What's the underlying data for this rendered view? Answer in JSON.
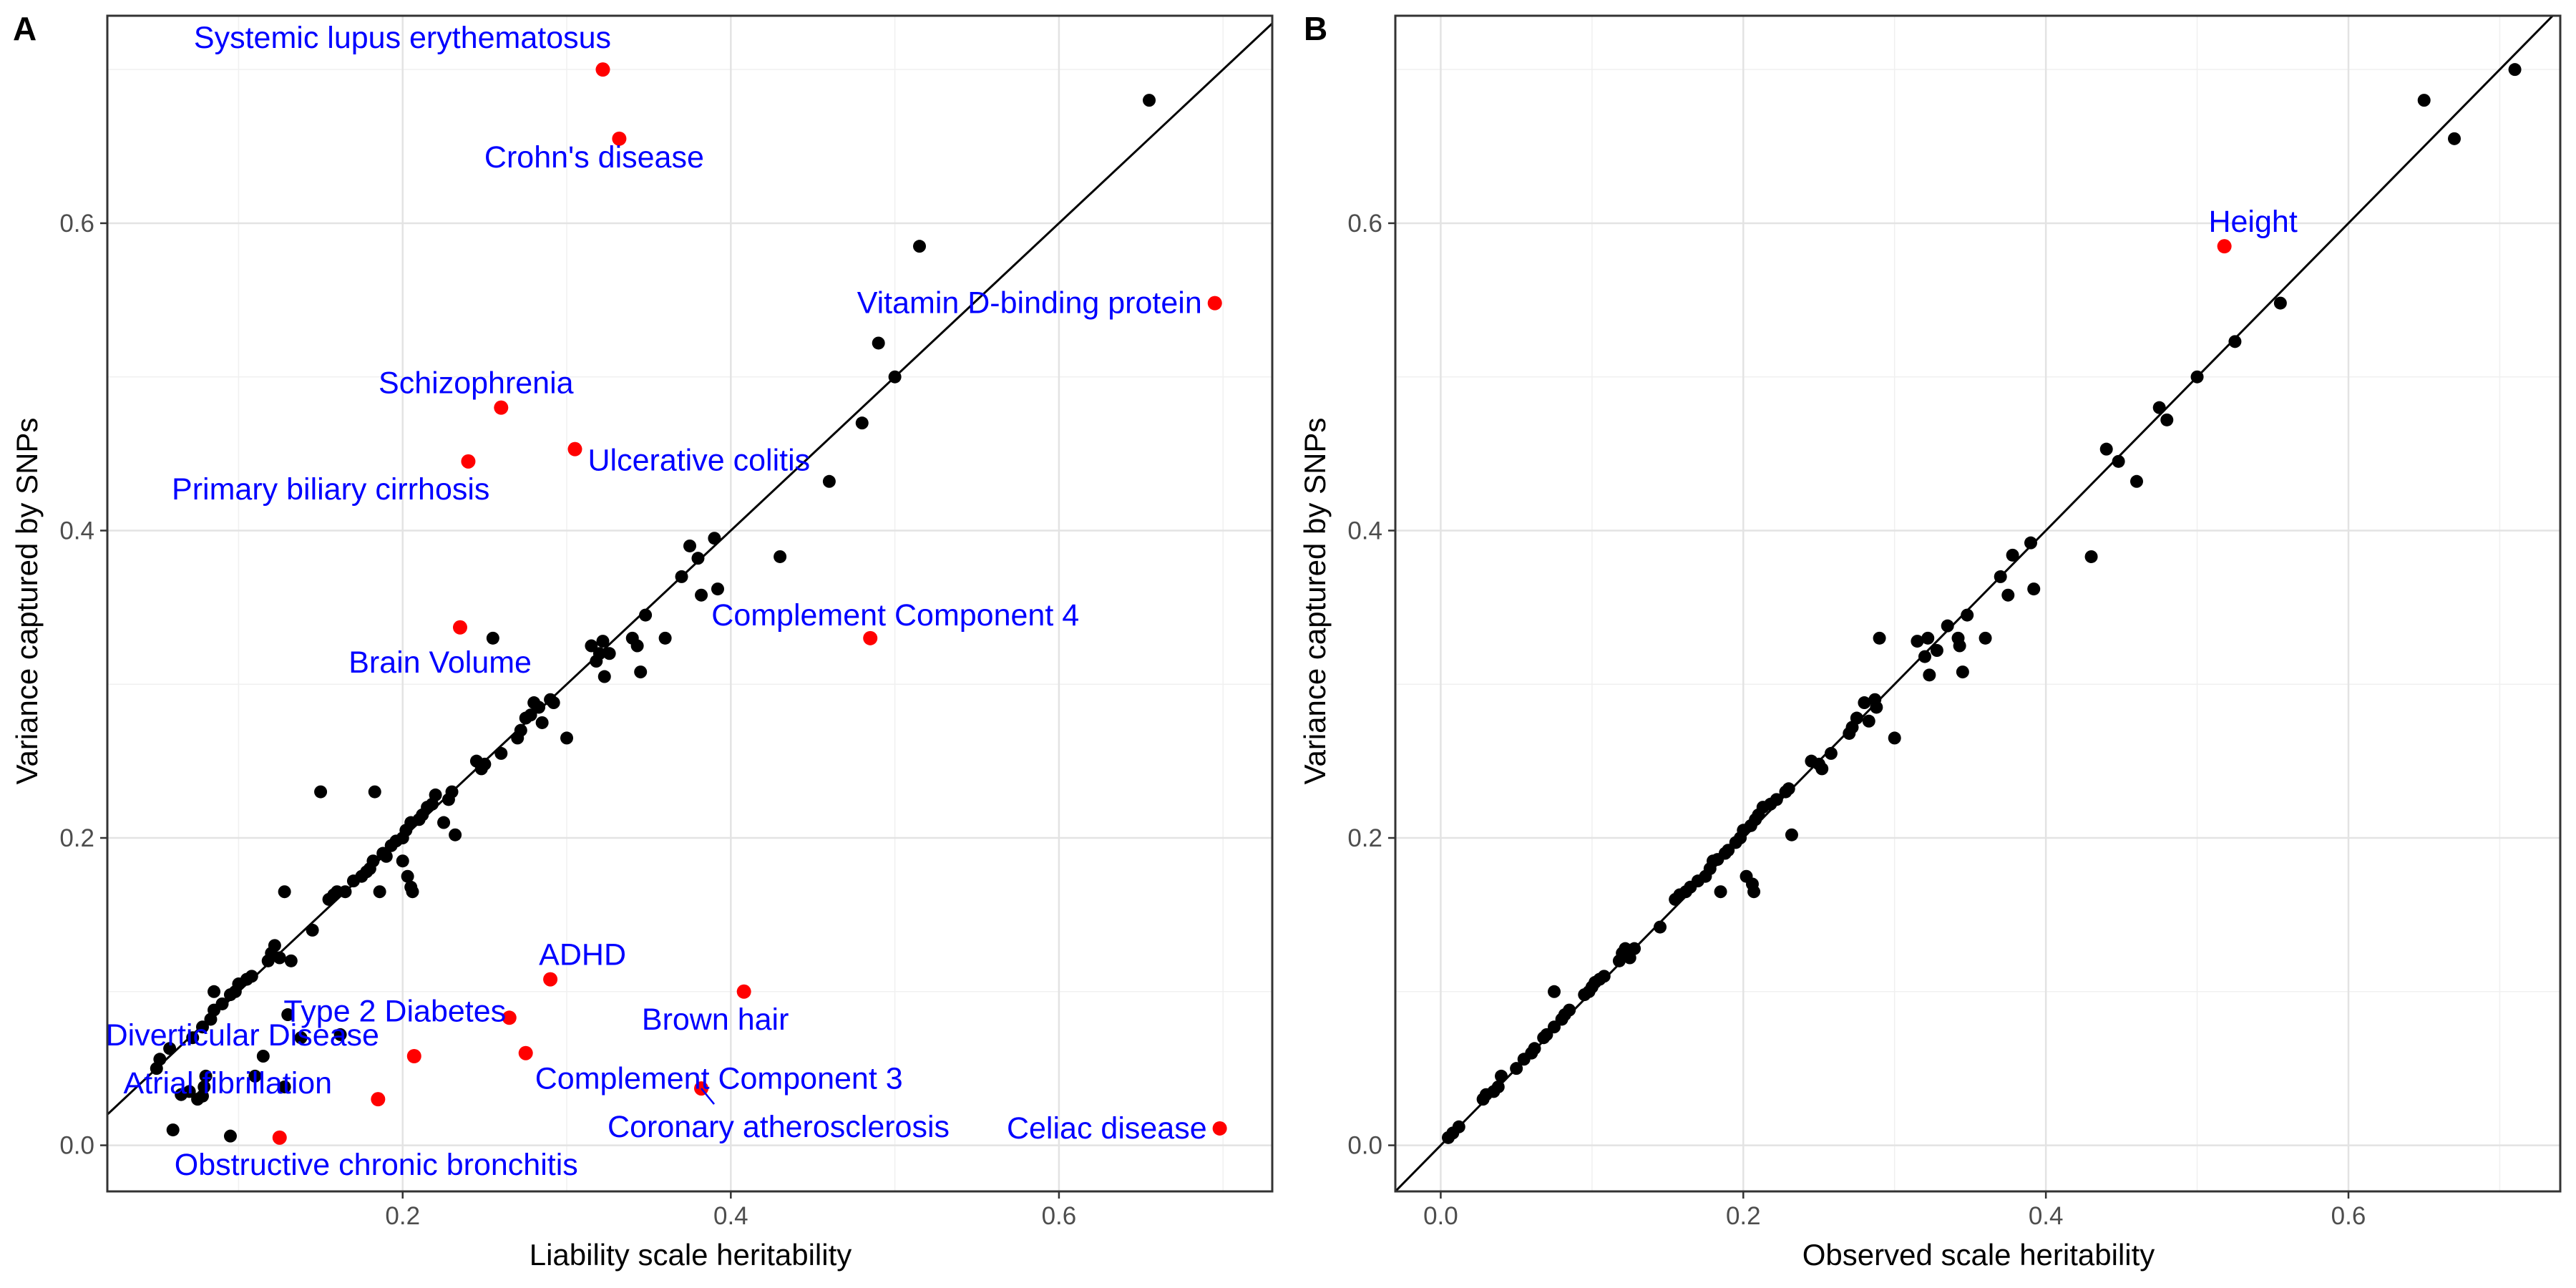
{
  "chart_data": [
    {
      "type": "scatter",
      "panel_label": "A",
      "xlabel": "Liability scale heritability",
      "ylabel": "Variance captured by SNPs",
      "xlim": [
        0.02,
        0.73
      ],
      "ylim": [
        -0.03,
        0.735
      ],
      "xticks": [
        0.2,
        0.4,
        0.6
      ],
      "yticks": [
        0.0,
        0.2,
        0.4,
        0.6
      ],
      "tick_labels_x": [
        "0.2",
        "0.4",
        "0.6"
      ],
      "tick_labels_y": [
        "0.0",
        "0.2",
        "0.4",
        "0.6"
      ],
      "grid": true,
      "reference_line": "y = x",
      "colors": {
        "default_point": "#000000",
        "highlight_point": "#ff0000",
        "label": "#0000ff"
      },
      "points": [
        [
          0.05,
          0.05
        ],
        [
          0.052,
          0.056
        ],
        [
          0.058,
          0.063
        ],
        [
          0.06,
          0.01
        ],
        [
          0.065,
          0.033
        ],
        [
          0.07,
          0.035
        ],
        [
          0.075,
          0.03
        ],
        [
          0.078,
          0.032
        ],
        [
          0.079,
          0.038
        ],
        [
          0.08,
          0.045
        ],
        [
          0.072,
          0.07
        ],
        [
          0.078,
          0.077
        ],
        [
          0.083,
          0.082
        ],
        [
          0.085,
          0.088
        ],
        [
          0.09,
          0.092
        ],
        [
          0.085,
          0.1
        ],
        [
          0.095,
          0.098
        ],
        [
          0.098,
          0.1
        ],
        [
          0.1,
          0.105
        ],
        [
          0.105,
          0.108
        ],
        [
          0.108,
          0.11
        ],
        [
          0.095,
          0.006
        ],
        [
          0.11,
          0.045
        ],
        [
          0.115,
          0.058
        ],
        [
          0.118,
          0.12
        ],
        [
          0.12,
          0.125
        ],
        [
          0.122,
          0.13
        ],
        [
          0.125,
          0.122
        ],
        [
          0.128,
          0.038
        ],
        [
          0.13,
          0.085
        ],
        [
          0.132,
          0.12
        ],
        [
          0.128,
          0.165
        ],
        [
          0.138,
          0.07
        ],
        [
          0.145,
          0.14
        ],
        [
          0.15,
          0.23
        ],
        [
          0.155,
          0.16
        ],
        [
          0.158,
          0.163
        ],
        [
          0.16,
          0.165
        ],
        [
          0.162,
          0.072
        ],
        [
          0.165,
          0.165
        ],
        [
          0.17,
          0.172
        ],
        [
          0.175,
          0.175
        ],
        [
          0.178,
          0.178
        ],
        [
          0.18,
          0.18
        ],
        [
          0.182,
          0.185
        ],
        [
          0.183,
          0.23
        ],
        [
          0.186,
          0.165
        ],
        [
          0.188,
          0.19
        ],
        [
          0.19,
          0.188
        ],
        [
          0.193,
          0.195
        ],
        [
          0.196,
          0.198
        ],
        [
          0.2,
          0.2
        ],
        [
          0.202,
          0.205
        ],
        [
          0.2,
          0.185
        ],
        [
          0.203,
          0.175
        ],
        [
          0.205,
          0.168
        ],
        [
          0.205,
          0.21
        ],
        [
          0.206,
          0.165
        ],
        [
          0.21,
          0.212
        ],
        [
          0.212,
          0.215
        ],
        [
          0.215,
          0.22
        ],
        [
          0.218,
          0.222
        ],
        [
          0.22,
          0.228
        ],
        [
          0.225,
          0.21
        ],
        [
          0.228,
          0.225
        ],
        [
          0.23,
          0.23
        ],
        [
          0.232,
          0.202
        ],
        [
          0.245,
          0.25
        ],
        [
          0.248,
          0.245
        ],
        [
          0.25,
          0.248
        ],
        [
          0.255,
          0.33
        ],
        [
          0.26,
          0.255
        ],
        [
          0.27,
          0.265
        ],
        [
          0.272,
          0.27
        ],
        [
          0.275,
          0.278
        ],
        [
          0.278,
          0.28
        ],
        [
          0.28,
          0.288
        ],
        [
          0.283,
          0.285
        ],
        [
          0.285,
          0.275
        ],
        [
          0.29,
          0.29
        ],
        [
          0.292,
          0.288
        ],
        [
          0.3,
          0.265
        ],
        [
          0.315,
          0.325
        ],
        [
          0.318,
          0.315
        ],
        [
          0.32,
          0.32
        ],
        [
          0.322,
          0.328
        ],
        [
          0.323,
          0.305
        ],
        [
          0.326,
          0.32
        ],
        [
          0.34,
          0.33
        ],
        [
          0.343,
          0.325
        ],
        [
          0.345,
          0.308
        ],
        [
          0.348,
          0.345
        ],
        [
          0.36,
          0.33
        ],
        [
          0.37,
          0.37
        ],
        [
          0.375,
          0.39
        ],
        [
          0.38,
          0.382
        ],
        [
          0.382,
          0.358
        ],
        [
          0.39,
          0.395
        ],
        [
          0.392,
          0.362
        ],
        [
          0.43,
          0.383
        ],
        [
          0.46,
          0.432
        ],
        [
          0.48,
          0.47
        ],
        [
          0.49,
          0.522
        ],
        [
          0.5,
          0.5
        ],
        [
          0.515,
          0.585
        ],
        [
          0.655,
          0.68
        ]
      ],
      "highlighted": [
        {
          "x": 0.322,
          "y": 0.7,
          "label": "Systemic lupus erythematosus"
        },
        {
          "x": 0.332,
          "y": 0.655,
          "label": "Crohn's disease"
        },
        {
          "x": 0.695,
          "y": 0.548,
          "label": "Vitamin D-binding protein"
        },
        {
          "x": 0.26,
          "y": 0.48,
          "label": "Schizophrenia"
        },
        {
          "x": 0.305,
          "y": 0.453,
          "label": "Ulcerative colitis"
        },
        {
          "x": 0.24,
          "y": 0.445,
          "label": "Primary biliary cirrhosis"
        },
        {
          "x": 0.235,
          "y": 0.337,
          "label": "Brain Volume"
        },
        {
          "x": 0.485,
          "y": 0.33,
          "label": "Complement Component 4"
        },
        {
          "x": 0.29,
          "y": 0.108,
          "label": "ADHD"
        },
        {
          "x": 0.408,
          "y": 0.1,
          "label": "Brown hair"
        },
        {
          "x": 0.265,
          "y": 0.083,
          "label": "Type 2 Diabetes"
        },
        {
          "x": 0.275,
          "y": 0.06,
          "label": "Complement Component 3"
        },
        {
          "x": 0.207,
          "y": 0.058,
          "label": "Diverticular Disease"
        },
        {
          "x": 0.185,
          "y": 0.03,
          "label": "Atrial fibrillation"
        },
        {
          "x": 0.382,
          "y": 0.037,
          "label": "Coronary atherosclerosis"
        },
        {
          "x": 0.125,
          "y": 0.005,
          "label": "Obstructive chronic bronchitis"
        },
        {
          "x": 0.698,
          "y": 0.011,
          "label": "Celiac disease"
        }
      ]
    },
    {
      "type": "scatter",
      "panel_label": "B",
      "xlabel": "Observed scale heritability",
      "ylabel": "Variance captured by SNPs",
      "xlim": [
        -0.03,
        0.74
      ],
      "ylim": [
        -0.03,
        0.735
      ],
      "xticks": [
        0.0,
        0.2,
        0.4,
        0.6
      ],
      "yticks": [
        0.0,
        0.2,
        0.4,
        0.6
      ],
      "tick_labels_x": [
        "0.0",
        "0.2",
        "0.4",
        "0.6"
      ],
      "tick_labels_y": [
        "0.0",
        "0.2",
        "0.4",
        "0.6"
      ],
      "grid": true,
      "reference_line": "y = x",
      "colors": {
        "default_point": "#000000",
        "highlight_point": "#ff0000",
        "label": "#0000ff"
      },
      "points": [
        [
          0.005,
          0.005
        ],
        [
          0.008,
          0.008
        ],
        [
          0.012,
          0.012
        ],
        [
          0.028,
          0.03
        ],
        [
          0.03,
          0.033
        ],
        [
          0.035,
          0.035
        ],
        [
          0.038,
          0.038
        ],
        [
          0.04,
          0.045
        ],
        [
          0.05,
          0.05
        ],
        [
          0.055,
          0.056
        ],
        [
          0.06,
          0.06
        ],
        [
          0.062,
          0.063
        ],
        [
          0.068,
          0.07
        ],
        [
          0.07,
          0.072
        ],
        [
          0.075,
          0.077
        ],
        [
          0.075,
          0.1
        ],
        [
          0.08,
          0.082
        ],
        [
          0.082,
          0.085
        ],
        [
          0.085,
          0.088
        ],
        [
          0.095,
          0.098
        ],
        [
          0.098,
          0.1
        ],
        [
          0.1,
          0.103
        ],
        [
          0.102,
          0.106
        ],
        [
          0.105,
          0.108
        ],
        [
          0.108,
          0.11
        ],
        [
          0.118,
          0.12
        ],
        [
          0.12,
          0.125
        ],
        [
          0.122,
          0.128
        ],
        [
          0.125,
          0.122
        ],
        [
          0.128,
          0.128
        ],
        [
          0.145,
          0.142
        ],
        [
          0.155,
          0.16
        ],
        [
          0.158,
          0.163
        ],
        [
          0.162,
          0.165
        ],
        [
          0.165,
          0.168
        ],
        [
          0.17,
          0.172
        ],
        [
          0.175,
          0.175
        ],
        [
          0.178,
          0.18
        ],
        [
          0.18,
          0.185
        ],
        [
          0.183,
          0.186
        ],
        [
          0.185,
          0.165
        ],
        [
          0.188,
          0.19
        ],
        [
          0.19,
          0.192
        ],
        [
          0.195,
          0.197
        ],
        [
          0.198,
          0.2
        ],
        [
          0.2,
          0.205
        ],
        [
          0.202,
          0.175
        ],
        [
          0.205,
          0.208
        ],
        [
          0.206,
          0.17
        ],
        [
          0.207,
          0.165
        ],
        [
          0.208,
          0.212
        ],
        [
          0.21,
          0.215
        ],
        [
          0.213,
          0.22
        ],
        [
          0.218,
          0.222
        ],
        [
          0.222,
          0.225
        ],
        [
          0.228,
          0.23
        ],
        [
          0.23,
          0.232
        ],
        [
          0.232,
          0.202
        ],
        [
          0.245,
          0.25
        ],
        [
          0.25,
          0.248
        ],
        [
          0.252,
          0.245
        ],
        [
          0.258,
          0.255
        ],
        [
          0.27,
          0.268
        ],
        [
          0.272,
          0.272
        ],
        [
          0.275,
          0.278
        ],
        [
          0.28,
          0.288
        ],
        [
          0.283,
          0.276
        ],
        [
          0.287,
          0.29
        ],
        [
          0.288,
          0.285
        ],
        [
          0.29,
          0.33
        ],
        [
          0.3,
          0.265
        ],
        [
          0.315,
          0.328
        ],
        [
          0.32,
          0.318
        ],
        [
          0.322,
          0.33
        ],
        [
          0.323,
          0.306
        ],
        [
          0.328,
          0.322
        ],
        [
          0.335,
          0.338
        ],
        [
          0.342,
          0.33
        ],
        [
          0.343,
          0.325
        ],
        [
          0.345,
          0.308
        ],
        [
          0.348,
          0.345
        ],
        [
          0.36,
          0.33
        ],
        [
          0.37,
          0.37
        ],
        [
          0.375,
          0.358
        ],
        [
          0.378,
          0.384
        ],
        [
          0.39,
          0.392
        ],
        [
          0.392,
          0.362
        ],
        [
          0.43,
          0.383
        ],
        [
          0.44,
          0.453
        ],
        [
          0.448,
          0.445
        ],
        [
          0.46,
          0.432
        ],
        [
          0.475,
          0.48
        ],
        [
          0.48,
          0.472
        ],
        [
          0.5,
          0.5
        ],
        [
          0.525,
          0.523
        ],
        [
          0.555,
          0.548
        ],
        [
          0.65,
          0.68
        ],
        [
          0.67,
          0.655
        ],
        [
          0.71,
          0.7
        ]
      ],
      "highlighted": [
        {
          "x": 0.518,
          "y": 0.585,
          "label": "Height"
        }
      ]
    }
  ]
}
